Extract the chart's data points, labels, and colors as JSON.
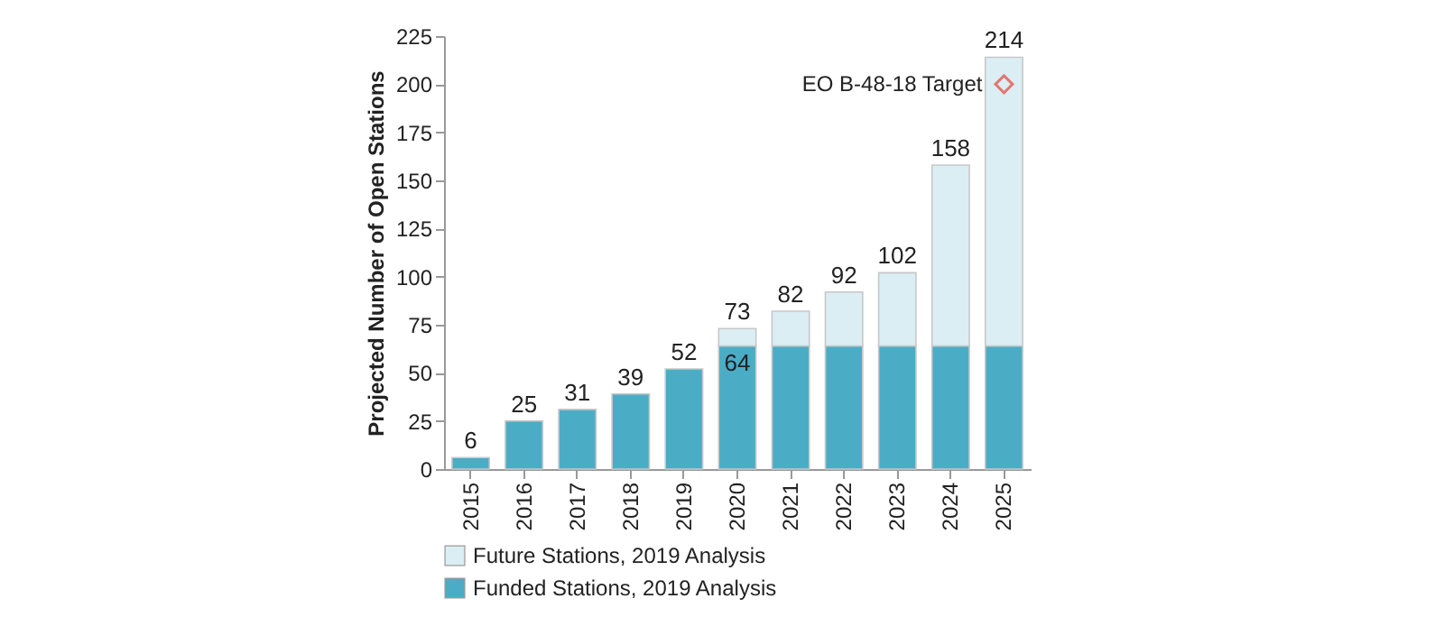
{
  "chart_data": {
    "type": "bar",
    "stacked": true,
    "ylabel": "Projected Number of Open Stations",
    "categories": [
      "2015",
      "2016",
      "2017",
      "2018",
      "2019",
      "2020",
      "2021",
      "2022",
      "2023",
      "2024",
      "2025"
    ],
    "series": [
      {
        "name": "Funded Stations, 2019 Analysis",
        "color": "#4bacc6",
        "values": [
          6,
          25,
          31,
          39,
          52,
          64,
          64,
          64,
          64,
          64,
          64
        ],
        "value_labels": [
          null,
          null,
          null,
          null,
          null,
          "64",
          null,
          null,
          null,
          null,
          null
        ]
      },
      {
        "name": "Future Stations, 2019 Analysis",
        "color": "#dbeef4",
        "values": [
          null,
          null,
          null,
          null,
          null,
          9,
          18,
          28,
          38,
          94,
          150
        ]
      },
      {
        "type": "scatter",
        "name": "EO B-48-18 Target",
        "color": "#e8443a",
        "values": [
          null,
          null,
          null,
          null,
          null,
          null,
          null,
          null,
          null,
          null,
          200
        ],
        "marker": "diamond"
      }
    ],
    "totals": [
      "6",
      "25",
      "31",
      "39",
      "52",
      "73",
      "82",
      "92",
      "102",
      "158",
      "214"
    ],
    "ylim": [
      0,
      225
    ],
    "yticks": [
      0,
      25,
      50,
      75,
      100,
      125,
      150,
      175,
      200,
      225
    ],
    "grid": false,
    "legend": "bottom"
  }
}
